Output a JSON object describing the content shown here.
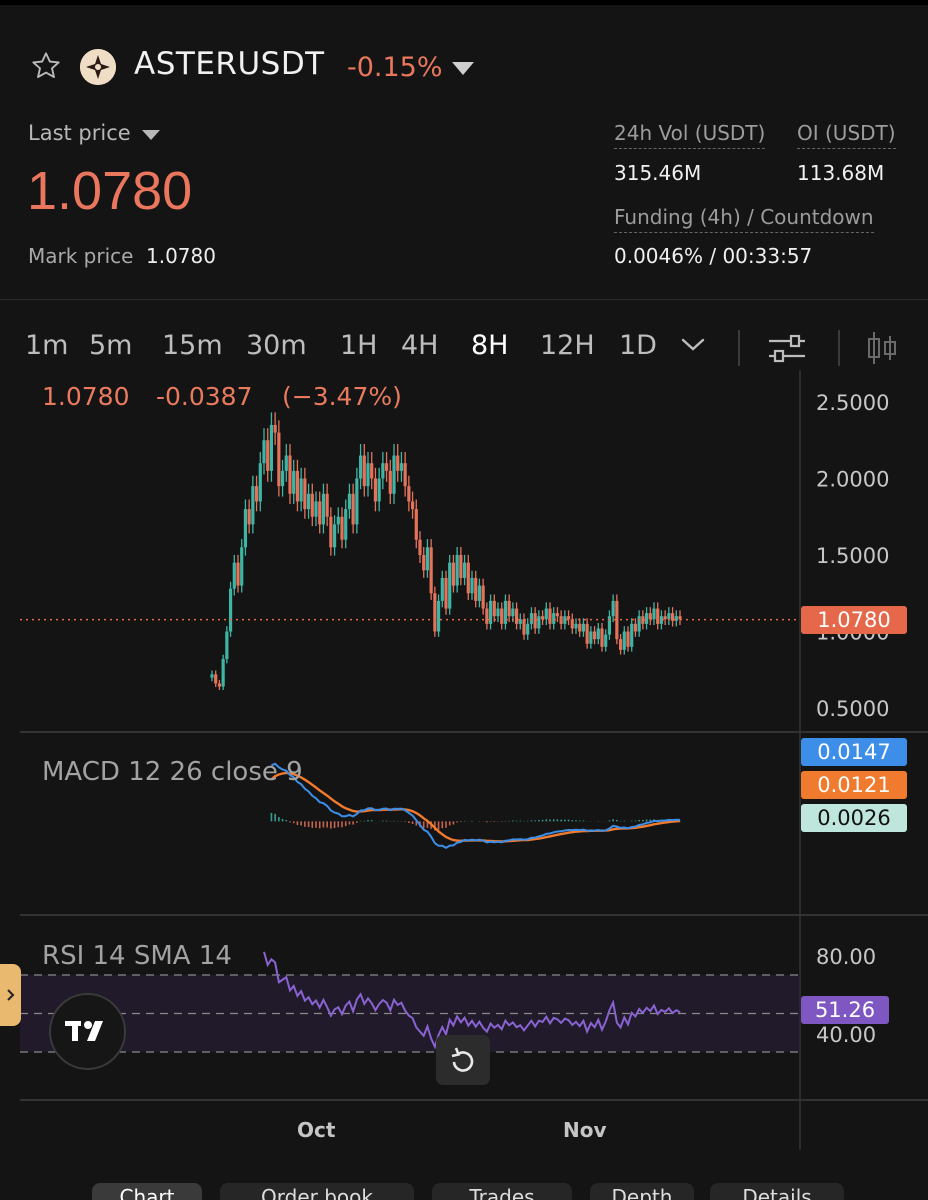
{
  "header": {
    "symbol": "ASTERUSDT",
    "change_pct": "-0.15%",
    "last_price_label": "Last price",
    "last_price": "1.0780",
    "mark_price_label": "Mark price",
    "mark_price": "1.0780",
    "vol_label": "24h Vol (USDT)",
    "vol_value": "315.46M",
    "oi_label": "OI (USDT)",
    "oi_value": "113.68M",
    "funding_label": "Funding (4h) / Countdown",
    "funding_value": "0.0046%  /  00:33:57"
  },
  "timeframes": [
    {
      "label": "1m"
    },
    {
      "label": "5m"
    },
    {
      "label": "15m"
    },
    {
      "label": "30m"
    },
    {
      "label": "1H"
    },
    {
      "label": "4H"
    },
    {
      "label": "8H",
      "active": true
    },
    {
      "label": "12H"
    },
    {
      "label": "1D"
    }
  ],
  "colors": {
    "up": "#3fb5a6",
    "down": "#e4735a",
    "macd": "#3d8ee8",
    "signal": "#f07a2e",
    "rsi": "#8a63d2",
    "price_badge": "#e6684b",
    "macd_badge": "#3d8ee8",
    "signal_badge": "#f07a2e",
    "hist_badge": "#bfe6dc",
    "rsi_badge": "#7e57c2"
  },
  "chart_data": {
    "type": "candlestick",
    "header": {
      "close": "1.0780",
      "change": "-0.0387",
      "change_pct": "(−3.47%)"
    },
    "y_tick_labels": [
      "2.5000",
      "2.0000",
      "1.5000",
      "1.0000",
      "0.5000"
    ],
    "y_ticks": [
      2.5,
      2.0,
      1.5,
      1.0,
      0.5
    ],
    "current_price": 1.078,
    "current_price_label": "1.0780",
    "x_tick_labels": [
      "Oct",
      "Nov"
    ],
    "closes": [
      0.72,
      0.66,
      0.64,
      0.82,
      1.0,
      1.28,
      1.45,
      1.3,
      1.55,
      1.8,
      1.7,
      1.95,
      1.85,
      2.1,
      2.25,
      2.05,
      2.35,
      2.3,
      1.95,
      2.05,
      2.15,
      1.9,
      2.05,
      1.85,
      2.0,
      1.8,
      1.9,
      1.75,
      1.85,
      1.7,
      1.9,
      1.75,
      1.55,
      1.7,
      1.75,
      1.6,
      1.8,
      1.9,
      1.7,
      2.0,
      2.15,
      1.95,
      2.1,
      2.0,
      1.85,
      2.0,
      2.1,
      2.05,
      1.9,
      2.15,
      2.05,
      2.1,
      1.95,
      1.85,
      1.8,
      1.6,
      1.5,
      1.4,
      1.55,
      1.25,
      1.0,
      1.2,
      1.35,
      1.15,
      1.45,
      1.3,
      1.5,
      1.35,
      1.45,
      1.25,
      1.35,
      1.2,
      1.3,
      1.15,
      1.05,
      1.2,
      1.1,
      1.15,
      1.05,
      1.2,
      1.1,
      1.15,
      1.05,
      1.08,
      0.98,
      1.05,
      1.12,
      1.02,
      1.1,
      1.08,
      1.15,
      1.05,
      1.12,
      1.1,
      1.05,
      1.1,
      1.08,
      1.02,
      1.05,
      1.0,
      1.05,
      0.92,
      1.0,
      0.95,
      1.02,
      0.9,
      0.98,
      1.1,
      1.2,
      0.95,
      0.88,
      1.0,
      0.9,
      1.05,
      1.0,
      1.1,
      1.05,
      1.12,
      1.08,
      1.15,
      1.05,
      1.1,
      1.08,
      1.12,
      1.07,
      1.1,
      1.08
    ],
    "macd": {
      "label": "MACD 12 26 close 9",
      "values": {
        "macd": "0.0147",
        "signal": "0.0121",
        "histogram": "0.0026"
      }
    },
    "rsi": {
      "label": "RSI 14 SMA 14",
      "y_tick_labels": [
        "80.00",
        "40.00"
      ],
      "upper": 70,
      "lower": 30,
      "value": "51.26"
    }
  },
  "tabs": [
    "Chart",
    "Order book",
    "Trades",
    "Depth",
    "Details"
  ]
}
